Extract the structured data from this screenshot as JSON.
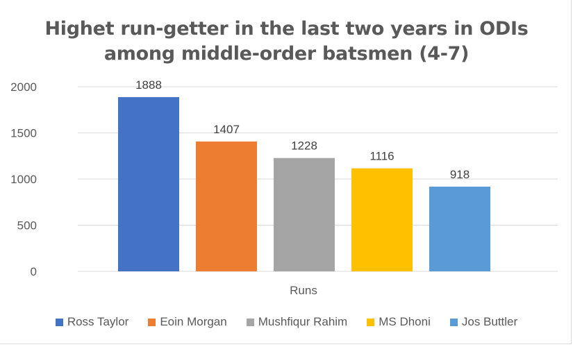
{
  "chart_data": {
    "type": "bar",
    "title_lines": [
      "Highet run-getter in the last two years in ODIs",
      "among middle-order batsmen (4-7)"
    ],
    "categories": [
      "Runs"
    ],
    "series": [
      {
        "name": "Ross Taylor",
        "values": [
          1888
        ],
        "color": "#4472C4"
      },
      {
        "name": "Eoin Morgan",
        "values": [
          1407
        ],
        "color": "#ED7D31"
      },
      {
        "name": "Mushfiqur Rahim",
        "values": [
          1228
        ],
        "color": "#A5A5A5"
      },
      {
        "name": "MS Dhoni",
        "values": [
          1116
        ],
        "color": "#FFC000"
      },
      {
        "name": "Jos Buttler",
        "values": [
          918
        ],
        "color": "#5B9BD5"
      }
    ],
    "y_ticks": [
      "0",
      "500",
      "1000",
      "1500",
      "2000"
    ],
    "ylim": [
      0,
      2000
    ],
    "grid": true,
    "legend_position": "bottom",
    "data_labels": true
  }
}
